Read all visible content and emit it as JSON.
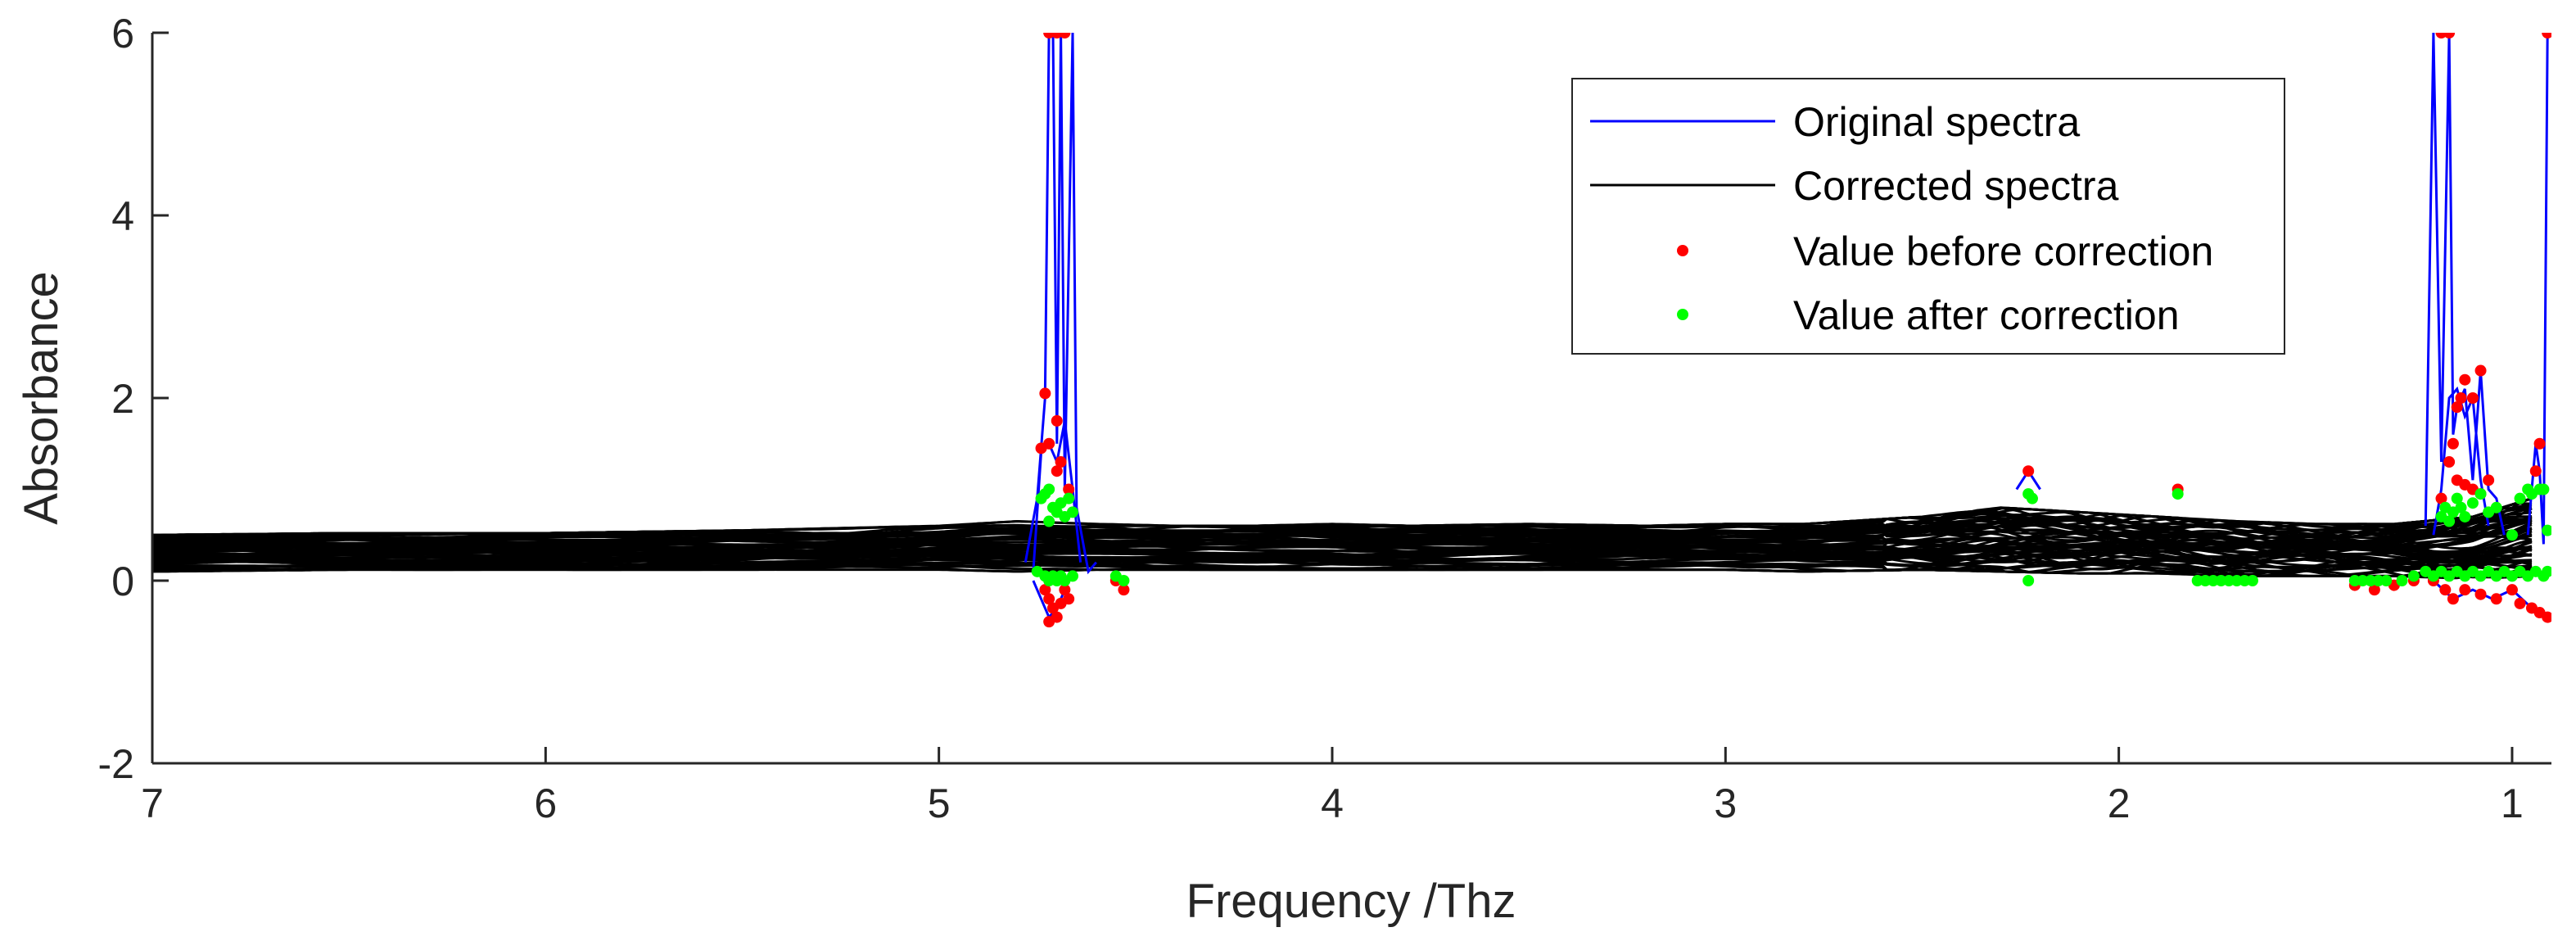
{
  "chart_data": {
    "type": "line",
    "xlabel": "Frequency /Thz",
    "ylabel": "Absorbance",
    "xlim": [
      7,
      0.9
    ],
    "ylim": [
      -2,
      6
    ],
    "x_reversed": true,
    "x_ticks": [
      7,
      6,
      5,
      4,
      3,
      2,
      1
    ],
    "y_ticks": [
      -2,
      0,
      2,
      4,
      6
    ],
    "x_tick_labels": [
      "7",
      "6",
      "5",
      "4",
      "3",
      "2",
      "1"
    ],
    "y_tick_labels": [
      "-2",
      "0",
      "2",
      "4",
      "6"
    ],
    "grid": false,
    "legend_position": "top-right",
    "legend": [
      {
        "label": "Original spectra",
        "kind": "line",
        "color": "#0000ff"
      },
      {
        "label": "Corrected spectra",
        "kind": "line",
        "color": "#000000"
      },
      {
        "label": "Value before correction",
        "kind": "marker",
        "color": "#ff0000"
      },
      {
        "label": "Value after correction",
        "kind": "marker",
        "color": "#00ff00"
      }
    ],
    "colors": {
      "original": "#0000ff",
      "corrected": "#000000",
      "before": "#ff0000",
      "after": "#00ff00",
      "axis": "#262626"
    },
    "series": [
      {
        "name": "Original spectra",
        "color": "#0000ff",
        "lines": [
          {
            "x": [
              4.78,
              4.75,
              4.73,
              4.72,
              4.71,
              4.7,
              4.69,
              4.68,
              4.66,
              4.65,
              4.62,
              4.6
            ],
            "y": [
              0.2,
              0.9,
              2.0,
              6.0,
              6.0,
              1.5,
              6.0,
              1.0,
              6.0,
              0.8,
              0.1,
              0.2
            ]
          },
          {
            "x": [
              4.76,
              4.74,
              4.72,
              4.7,
              4.68,
              4.66,
              4.64
            ],
            "y": [
              0.1,
              1.4,
              1.5,
              1.3,
              1.75,
              1.0,
              0.2
            ]
          },
          {
            "x": [
              4.76,
              4.74,
              4.72,
              4.7,
              4.68,
              4.66
            ],
            "y": [
              0.0,
              -0.2,
              -0.4,
              -0.3,
              -0.1,
              0.1
            ]
          },
          {
            "x": [
              2.26,
              2.23,
              2.2
            ],
            "y": [
              1.0,
              1.2,
              1.0
            ]
          },
          {
            "x": [
              1.22,
              1.2,
              1.18,
              1.16,
              1.15,
              1.14,
              1.12,
              1.1,
              1.08,
              1.06,
              1.04,
              1.02
            ],
            "y": [
              0.6,
              6.0,
              1.3,
              6.0,
              1.6,
              1.9,
              2.1,
              1.1,
              2.3,
              1.0,
              0.9,
              0.5
            ]
          },
          {
            "x": [
              1.2,
              1.18,
              1.16,
              1.14,
              1.12,
              1.1,
              1.08,
              1.06
            ],
            "y": [
              0.5,
              1.0,
              2.0,
              2.1,
              1.8,
              2.0,
              1.1,
              0.6
            ]
          },
          {
            "x": [
              0.96,
              0.94,
              0.93,
              0.92,
              0.91
            ],
            "y": [
              0.5,
              1.5,
              1.2,
              0.4,
              6.0
            ]
          },
          {
            "x": [
              1.2,
              1.15,
              1.1,
              1.05,
              1.0,
              0.95,
              0.92
            ],
            "y": [
              0.0,
              -0.2,
              -0.1,
              -0.2,
              -0.1,
              -0.3,
              -0.35
            ]
          }
        ]
      },
      {
        "name": "Corrected spectra",
        "color": "#000000",
        "line_count": 60,
        "description_points": {
          "x": [
            7.0,
            6.5,
            6.0,
            5.5,
            5.0,
            4.8,
            4.6,
            4.4,
            4.2,
            4.0,
            3.8,
            3.5,
            3.2,
            3.0,
            2.8,
            2.5,
            2.3,
            2.1,
            1.9,
            1.7,
            1.5,
            1.3,
            1.1,
            0.95
          ],
          "y_min": [
            0.1,
            0.12,
            0.12,
            0.12,
            0.12,
            0.1,
            0.12,
            0.12,
            0.12,
            0.12,
            0.12,
            0.12,
            0.12,
            0.12,
            0.1,
            0.12,
            0.1,
            0.08,
            0.08,
            0.05,
            0.05,
            0.05,
            0.02,
            0.05
          ],
          "y_max": [
            0.5,
            0.52,
            0.52,
            0.55,
            0.6,
            0.65,
            0.62,
            0.6,
            0.6,
            0.62,
            0.6,
            0.62,
            0.6,
            0.62,
            0.62,
            0.7,
            0.8,
            0.75,
            0.7,
            0.65,
            0.62,
            0.62,
            0.7,
            0.9
          ]
        }
      },
      {
        "name": "Value before correction",
        "color": "#ff0000",
        "points": [
          [
            4.72,
            6.0
          ],
          [
            4.7,
            6.0
          ],
          [
            4.68,
            6.0
          ],
          [
            4.73,
            2.05
          ],
          [
            4.7,
            1.75
          ],
          [
            4.74,
            1.45
          ],
          [
            4.72,
            1.5
          ],
          [
            4.69,
            1.3
          ],
          [
            4.67,
            1.0
          ],
          [
            4.7,
            1.2
          ],
          [
            4.73,
            -0.1
          ],
          [
            4.72,
            -0.2
          ],
          [
            4.71,
            -0.3
          ],
          [
            4.7,
            -0.4
          ],
          [
            4.69,
            -0.25
          ],
          [
            4.72,
            -0.45
          ],
          [
            4.67,
            -0.2
          ],
          [
            4.68,
            -0.1
          ],
          [
            4.55,
            0.0
          ],
          [
            4.53,
            -0.1
          ],
          [
            2.23,
            1.2
          ],
          [
            1.85,
            1.0
          ],
          [
            1.18,
            6.0
          ],
          [
            1.16,
            6.0
          ],
          [
            1.15,
            1.5
          ],
          [
            1.14,
            1.9
          ],
          [
            1.13,
            2.0
          ],
          [
            1.12,
            2.2
          ],
          [
            1.1,
            2.0
          ],
          [
            1.08,
            2.3
          ],
          [
            1.06,
            1.1
          ],
          [
            1.16,
            1.3
          ],
          [
            1.14,
            1.1
          ],
          [
            1.12,
            1.05
          ],
          [
            1.1,
            1.0
          ],
          [
            1.08,
            0.95
          ],
          [
            1.18,
            0.9
          ],
          [
            0.93,
            1.5
          ],
          [
            0.94,
            1.2
          ],
          [
            0.91,
            6.0
          ],
          [
            1.2,
            0.0
          ],
          [
            1.17,
            -0.1
          ],
          [
            1.15,
            -0.2
          ],
          [
            1.12,
            -0.1
          ],
          [
            1.08,
            -0.15
          ],
          [
            1.04,
            -0.2
          ],
          [
            1.0,
            -0.1
          ],
          [
            0.98,
            -0.25
          ],
          [
            0.95,
            -0.3
          ],
          [
            0.93,
            -0.35
          ],
          [
            0.91,
            -0.4
          ],
          [
            1.4,
            -0.05
          ],
          [
            1.35,
            -0.1
          ],
          [
            1.3,
            -0.05
          ],
          [
            1.25,
            0.0
          ]
        ]
      },
      {
        "name": "Value after correction",
        "color": "#00ff00",
        "points": [
          [
            4.74,
            0.9
          ],
          [
            4.73,
            0.95
          ],
          [
            4.72,
            1.0
          ],
          [
            4.71,
            0.8
          ],
          [
            4.7,
            0.75
          ],
          [
            4.69,
            0.85
          ],
          [
            4.68,
            0.7
          ],
          [
            4.67,
            0.9
          ],
          [
            4.66,
            0.75
          ],
          [
            4.72,
            0.65
          ],
          [
            4.75,
            0.1
          ],
          [
            4.73,
            0.05
          ],
          [
            4.72,
            0.0
          ],
          [
            4.71,
            0.05
          ],
          [
            4.7,
            0.0
          ],
          [
            4.69,
            0.05
          ],
          [
            4.68,
            0.0
          ],
          [
            4.66,
            0.05
          ],
          [
            4.55,
            0.05
          ],
          [
            4.53,
            0.0
          ],
          [
            2.23,
            0.95
          ],
          [
            2.22,
            0.9
          ],
          [
            2.23,
            0.0
          ],
          [
            1.85,
            0.95
          ],
          [
            1.8,
            0.0
          ],
          [
            1.78,
            0.0
          ],
          [
            1.76,
            0.0
          ],
          [
            1.74,
            0.0
          ],
          [
            1.72,
            0.0
          ],
          [
            1.7,
            0.0
          ],
          [
            1.68,
            0.0
          ],
          [
            1.66,
            0.0
          ],
          [
            1.4,
            0.0
          ],
          [
            1.38,
            0.0
          ],
          [
            1.36,
            0.0
          ],
          [
            1.34,
            0.0
          ],
          [
            1.32,
            0.0
          ],
          [
            1.28,
            0.0
          ],
          [
            1.25,
            0.05
          ],
          [
            1.22,
            0.1
          ],
          [
            1.2,
            0.05
          ],
          [
            1.18,
            0.1
          ],
          [
            1.16,
            0.05
          ],
          [
            1.14,
            0.1
          ],
          [
            1.12,
            0.05
          ],
          [
            1.1,
            0.1
          ],
          [
            1.08,
            0.05
          ],
          [
            1.06,
            0.1
          ],
          [
            1.04,
            0.05
          ],
          [
            1.02,
            0.1
          ],
          [
            1.0,
            0.05
          ],
          [
            0.98,
            0.1
          ],
          [
            0.96,
            0.05
          ],
          [
            0.94,
            0.1
          ],
          [
            0.92,
            0.05
          ],
          [
            0.91,
            0.1
          ],
          [
            1.18,
            0.7
          ],
          [
            1.17,
            0.8
          ],
          [
            1.16,
            0.65
          ],
          [
            1.15,
            0.75
          ],
          [
            1.14,
            0.9
          ],
          [
            1.13,
            0.8
          ],
          [
            1.12,
            0.7
          ],
          [
            1.1,
            0.85
          ],
          [
            1.08,
            0.95
          ],
          [
            1.06,
            0.75
          ],
          [
            1.04,
            0.8
          ],
          [
            0.98,
            0.9
          ],
          [
            0.96,
            1.0
          ],
          [
            0.95,
            0.95
          ],
          [
            0.93,
            1.0
          ],
          [
            0.92,
            1.0
          ],
          [
            0.91,
            0.55
          ],
          [
            1.0,
            0.5
          ]
        ]
      }
    ]
  }
}
